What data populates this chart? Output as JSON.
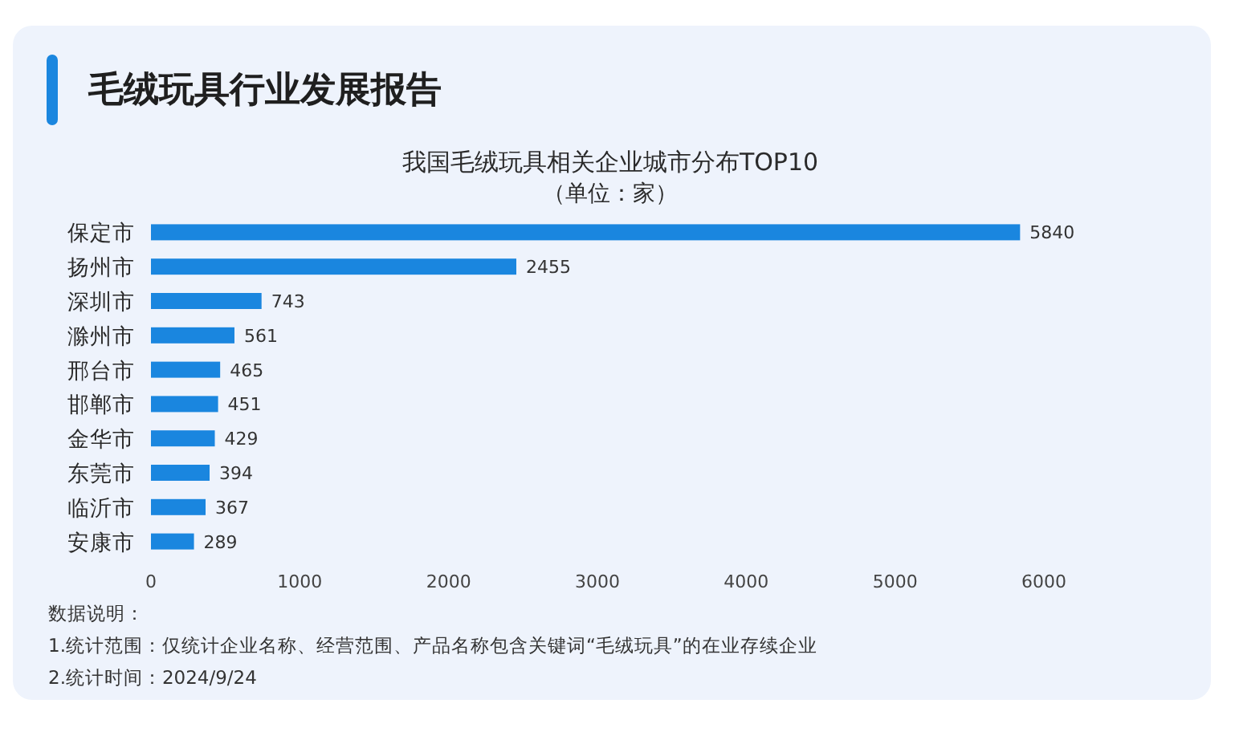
{
  "chart_data": {
    "type": "bar",
    "orientation": "horizontal",
    "title": "毛绒玩具行业发展报告",
    "subtitle": "我国毛绒玩具相关企业城市分布TOP10",
    "categories": [
      "保定市",
      "扬州市",
      "深圳市",
      "滁州市",
      "邢台市",
      "邯郸市",
      "金华市",
      "东莞市",
      "临沂市",
      "安康市"
    ],
    "values": [
      5840,
      2455,
      743,
      561,
      465,
      451,
      429,
      394,
      367,
      289
    ],
    "color": "#1a86df",
    "data_labels": true,
    "xlim": [
      0,
      6000
    ],
    "xticks": [
      0,
      1000,
      2000,
      3000,
      4000,
      5000,
      6000
    ],
    "annotations": [
      "（单位：家）",
      "数据说明：",
      "1.统计范围：仅统计企业名称、经营范围、产品名称包含关键词“毛绒玩具”的在业存续企业",
      "2.统计时间：2024/9/24"
    ]
  }
}
